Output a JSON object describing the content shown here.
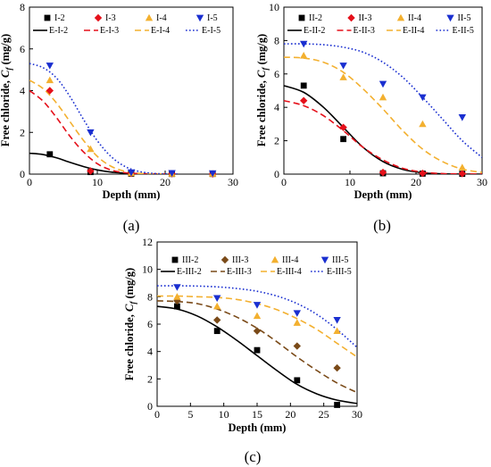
{
  "colors": {
    "s2": "#000000",
    "s3": "#e5101a",
    "s4": "#f3b02f",
    "s5": "#1a2fd0"
  },
  "chart_data": [
    {
      "type": "scatter",
      "panel_label": "(a)",
      "xlabel": "Depth (mm)",
      "ylabel": "Free chloride, C_f (mg/g)",
      "xlim": [
        0,
        30
      ],
      "ylim": [
        0,
        8
      ],
      "xticks": [
        "0",
        "10",
        "20",
        "30"
      ],
      "yticks": [
        "0",
        "2",
        "4",
        "6",
        "8"
      ],
      "legend_placement": "top",
      "series": [
        {
          "name": "I-2",
          "marker": "square",
          "color": "#000000",
          "x": [
            3,
            9,
            15,
            21,
            27
          ],
          "y": [
            0.95,
            0.1,
            0.02,
            0.01,
            0.01
          ]
        },
        {
          "name": "I-3",
          "marker": "diamond",
          "color": "#e5101a",
          "x": [
            3,
            9,
            15,
            21,
            27
          ],
          "y": [
            4.0,
            0.15,
            0.03,
            0.02,
            0.01
          ]
        },
        {
          "name": "I-4",
          "marker": "triangle-up",
          "color": "#f3b02f",
          "x": [
            3,
            9,
            15,
            21,
            27
          ],
          "y": [
            4.5,
            1.2,
            0.05,
            0.02,
            0.02
          ]
        },
        {
          "name": "I-5",
          "marker": "triangle-down",
          "color": "#1a2fd0",
          "x": [
            3,
            9,
            15,
            21,
            27
          ],
          "y": [
            5.2,
            2.0,
            0.08,
            0.05,
            0.04
          ]
        }
      ],
      "fits": [
        {
          "name": "E-I-2",
          "style": "solid",
          "color": "#000000",
          "x": [
            0,
            2,
            4,
            6,
            8,
            10,
            12,
            14,
            16,
            18,
            20
          ],
          "y": [
            1.0,
            0.94,
            0.78,
            0.56,
            0.36,
            0.2,
            0.1,
            0.05,
            0.02,
            0.01,
            0.0
          ]
        },
        {
          "name": "E-I-3",
          "style": "dashed",
          "color": "#e5101a",
          "x": [
            0,
            2,
            4,
            6,
            8,
            10,
            12,
            14,
            16,
            18,
            20
          ],
          "y": [
            4.0,
            3.5,
            2.7,
            1.8,
            1.05,
            0.5,
            0.2,
            0.07,
            0.02,
            0.0,
            0.0
          ]
        },
        {
          "name": "E-I-4",
          "style": "dashed",
          "color": "#f3b02f",
          "x": [
            0,
            2,
            4,
            6,
            8,
            10,
            12,
            14,
            16,
            18,
            20
          ],
          "y": [
            4.5,
            4.1,
            3.4,
            2.5,
            1.6,
            0.85,
            0.38,
            0.14,
            0.04,
            0.01,
            0.0
          ]
        },
        {
          "name": "E-I-5",
          "style": "dotted",
          "color": "#1a2fd0",
          "x": [
            0,
            2,
            4,
            6,
            8,
            10,
            12,
            14,
            16,
            18,
            20,
            22
          ],
          "y": [
            5.3,
            5.1,
            4.6,
            3.7,
            2.6,
            1.6,
            0.85,
            0.38,
            0.14,
            0.04,
            0.01,
            0.0
          ]
        }
      ]
    },
    {
      "type": "scatter",
      "panel_label": "(b)",
      "xlabel": "Depth (mm)",
      "ylabel": "Free chloride, C_f (mg/g)",
      "xlim": [
        0,
        30
      ],
      "ylim": [
        0,
        10
      ],
      "xticks": [
        "0",
        "10",
        "20",
        "30"
      ],
      "yticks": [
        "0",
        "2",
        "4",
        "6",
        "8",
        "10"
      ],
      "legend_placement": "top",
      "series": [
        {
          "name": "II-2",
          "marker": "square",
          "color": "#000000",
          "x": [
            3,
            9,
            15,
            21,
            27
          ],
          "y": [
            5.3,
            2.1,
            0.05,
            0.03,
            0.02
          ]
        },
        {
          "name": "II-3",
          "marker": "diamond",
          "color": "#e5101a",
          "x": [
            3,
            9,
            15,
            21,
            27
          ],
          "y": [
            4.4,
            2.8,
            0.1,
            0.05,
            0.03
          ]
        },
        {
          "name": "II-4",
          "marker": "triangle-up",
          "color": "#f3b02f",
          "x": [
            3,
            9,
            15,
            21,
            27
          ],
          "y": [
            7.1,
            5.8,
            4.6,
            3.0,
            0.4
          ]
        },
        {
          "name": "II-5",
          "marker": "triangle-down",
          "color": "#1a2fd0",
          "x": [
            3,
            9,
            15,
            21,
            27
          ],
          "y": [
            7.8,
            6.5,
            5.4,
            4.6,
            3.4
          ]
        }
      ],
      "fits": [
        {
          "name": "E-II-2",
          "style": "solid",
          "color": "#000000",
          "x": [
            0,
            3,
            6,
            9,
            12,
            15,
            18,
            21,
            24,
            27,
            30
          ],
          "y": [
            5.3,
            4.9,
            4.0,
            2.8,
            1.6,
            0.75,
            0.28,
            0.08,
            0.02,
            0.0,
            0.0
          ]
        },
        {
          "name": "E-II-3",
          "style": "dashed",
          "color": "#e5101a",
          "x": [
            0,
            3,
            6,
            9,
            12,
            15,
            18,
            21,
            24,
            27,
            30
          ],
          "y": [
            4.4,
            4.1,
            3.5,
            2.6,
            1.6,
            0.85,
            0.35,
            0.12,
            0.03,
            0.01,
            0.0
          ]
        },
        {
          "name": "E-II-4",
          "style": "dashed",
          "color": "#f3b02f",
          "x": [
            0,
            3,
            6,
            9,
            12,
            15,
            18,
            21,
            24,
            27,
            30
          ],
          "y": [
            7.0,
            6.95,
            6.7,
            6.1,
            5.1,
            3.9,
            2.6,
            1.5,
            0.75,
            0.3,
            0.1
          ]
        },
        {
          "name": "E-II-5",
          "style": "dotted",
          "color": "#1a2fd0",
          "x": [
            0,
            3,
            6,
            9,
            12,
            15,
            18,
            21,
            24,
            27,
            30
          ],
          "y": [
            7.8,
            7.8,
            7.75,
            7.6,
            7.3,
            6.7,
            5.8,
            4.6,
            3.3,
            2.0,
            1.0
          ]
        }
      ]
    },
    {
      "type": "scatter",
      "panel_label": "(c)",
      "xlabel": "Depth (mm)",
      "ylabel": "Free chloride, C_f (mg/g)",
      "xlim": [
        0,
        30
      ],
      "ylim": [
        0,
        12
      ],
      "xticks": [
        "0",
        "5",
        "10",
        "15",
        "20",
        "25",
        "30"
      ],
      "yticks": [
        "0",
        "2",
        "4",
        "6",
        "8",
        "10",
        "12"
      ],
      "legend_placement": "top",
      "series": [
        {
          "name": "III-2",
          "marker": "square",
          "color": "#000000",
          "x": [
            3,
            9,
            15,
            21,
            27
          ],
          "y": [
            7.3,
            5.5,
            4.1,
            1.9,
            0.1
          ]
        },
        {
          "name": "III-3",
          "marker": "diamond",
          "color": "#7a4a18",
          "x": [
            3,
            9,
            15,
            21,
            27
          ],
          "y": [
            7.7,
            6.3,
            5.5,
            4.4,
            2.8
          ]
        },
        {
          "name": "III-4",
          "marker": "triangle-up",
          "color": "#f3b02f",
          "x": [
            3,
            9,
            15,
            21,
            27
          ],
          "y": [
            8.0,
            7.3,
            6.6,
            6.1,
            5.5
          ]
        },
        {
          "name": "III-5",
          "marker": "triangle-down",
          "color": "#1a2fd0",
          "x": [
            3,
            9,
            15,
            21,
            27
          ],
          "y": [
            8.7,
            7.9,
            7.4,
            6.8,
            6.3
          ]
        }
      ],
      "fits": [
        {
          "name": "E-III-2",
          "style": "solid",
          "color": "#000000",
          "x": [
            0,
            3,
            6,
            9,
            12,
            15,
            18,
            21,
            24,
            27,
            30
          ],
          "y": [
            7.3,
            7.1,
            6.6,
            5.8,
            4.8,
            3.7,
            2.6,
            1.6,
            0.9,
            0.45,
            0.2
          ]
        },
        {
          "name": "E-III-3",
          "style": "dashed",
          "color": "#7a4a18",
          "x": [
            0,
            3,
            6,
            9,
            12,
            15,
            18,
            21,
            24,
            27,
            30
          ],
          "y": [
            7.7,
            7.65,
            7.5,
            7.1,
            6.5,
            5.7,
            4.7,
            3.6,
            2.6,
            1.7,
            1.0
          ]
        },
        {
          "name": "E-III-4",
          "style": "dashed",
          "color": "#f3b02f",
          "x": [
            0,
            3,
            6,
            9,
            12,
            15,
            18,
            21,
            24,
            27,
            30
          ],
          "y": [
            8.05,
            8.05,
            8.0,
            7.95,
            7.8,
            7.5,
            7.05,
            6.4,
            5.6,
            4.6,
            3.6
          ]
        },
        {
          "name": "E-III-5",
          "style": "dotted",
          "color": "#1a2fd0",
          "x": [
            0,
            3,
            6,
            9,
            12,
            15,
            18,
            21,
            24,
            27,
            30
          ],
          "y": [
            8.8,
            8.8,
            8.78,
            8.72,
            8.6,
            8.4,
            8.05,
            7.5,
            6.7,
            5.6,
            4.3
          ]
        }
      ]
    }
  ]
}
